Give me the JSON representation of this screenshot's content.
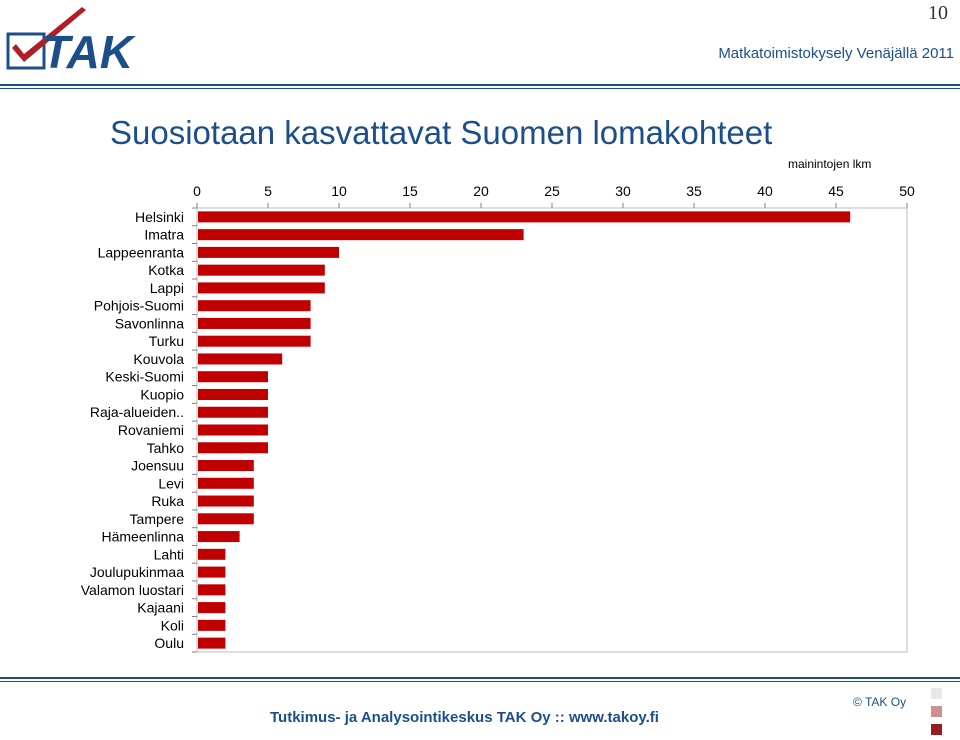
{
  "page_number": "10",
  "logo": {
    "text": "TAK"
  },
  "header": {
    "survey_title": "Matkatoimistokysely Venäjällä 2011"
  },
  "slide": {
    "title": "Suosiotaan kasvattavat Suomen lomakohteet"
  },
  "footer": {
    "text": "Tutkimus- ja Analysointikeskus TAK Oy  ::  www.takoy.fi",
    "copyright": "© TAK Oy"
  },
  "colors": {
    "bar": "#c00000",
    "brand_blue": "#1c4f8a",
    "logo_red": "#b01e23"
  },
  "chart_data": {
    "type": "bar",
    "orientation": "horizontal",
    "unit_label": "mainintojen lkm",
    "categories": [
      "Helsinki",
      "Imatra",
      "Lappeenranta",
      "Kotka",
      "Lappi",
      "Pohjois-Suomi",
      "Savonlinna",
      "Turku",
      "Kouvola",
      "Keski-Suomi",
      "Kuopio",
      "Raja-alueiden..",
      "Rovaniemi",
      "Tahko",
      "Joensuu",
      "Levi",
      "Ruka",
      "Tampere",
      "Hämeenlinna",
      "Lahti",
      "Joulupukinmaa",
      "Valamon luostari",
      "Kajaani",
      "Koli",
      "Oulu"
    ],
    "values": [
      46,
      23,
      10,
      9,
      9,
      8,
      8,
      8,
      6,
      5,
      5,
      5,
      5,
      5,
      4,
      4,
      4,
      4,
      3,
      2,
      2,
      2,
      2,
      2,
      2
    ],
    "xlim": [
      0,
      50
    ],
    "ticks": [
      "0",
      "5",
      "10",
      "15",
      "20",
      "25",
      "30",
      "35",
      "40",
      "45",
      "50"
    ],
    "axis_position": "top",
    "grid": false,
    "legend": "none"
  }
}
